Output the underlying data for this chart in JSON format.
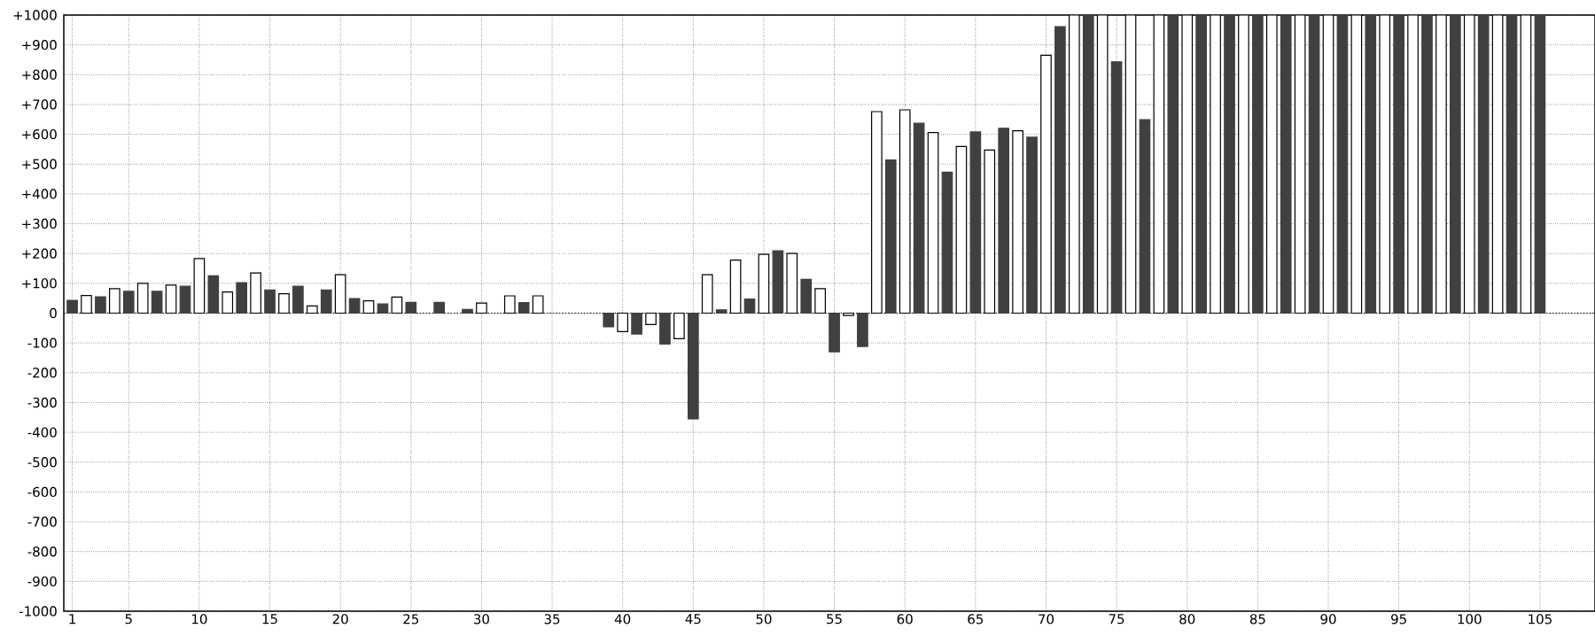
{
  "chart_data": {
    "type": "bar",
    "categories": [
      "1",
      null,
      null,
      null,
      "5",
      null,
      null,
      null,
      null,
      "10",
      null,
      null,
      null,
      null,
      "15",
      null,
      null,
      null,
      null,
      "20",
      null,
      null,
      null,
      null,
      "25",
      null,
      null,
      null,
      null,
      "30",
      null,
      null,
      null,
      null,
      "35",
      null,
      null,
      null,
      null,
      "40",
      null,
      null,
      null,
      null,
      "45",
      null,
      null,
      null,
      null,
      "50",
      null,
      null,
      null,
      null,
      "55",
      null,
      null,
      null,
      null,
      "60",
      null,
      null,
      null,
      null,
      "65",
      null,
      null,
      null,
      null,
      "70",
      null,
      null,
      null,
      null,
      "75",
      null,
      null,
      null,
      null,
      "80",
      null,
      null,
      null,
      null,
      "85",
      null,
      null,
      null,
      null,
      "90",
      null,
      null,
      null,
      null,
      "95",
      null,
      null,
      null,
      null,
      "100",
      null,
      null,
      null,
      null,
      "105"
    ],
    "values": [
      43,
      59,
      55,
      82,
      73,
      100,
      73,
      94,
      90,
      183,
      125,
      71,
      102,
      135,
      78,
      65,
      90,
      24,
      78,
      129,
      49,
      41,
      31,
      54,
      36,
      null,
      36,
      null,
      12,
      34,
      null,
      58,
      35,
      58,
      null,
      null,
      null,
      null,
      -46,
      -62,
      -70,
      -38,
      -104,
      -86,
      -355,
      129,
      11,
      178,
      47,
      197,
      209,
      200,
      113,
      82,
      -130,
      -8,
      -112,
      676,
      514,
      682,
      637,
      606,
      473,
      559,
      608,
      547,
      620,
      612,
      590,
      865,
      961,
      1000,
      1000,
      1000,
      843,
      1000,
      649,
      1000,
      1000,
      1000,
      1000,
      1000,
      1000,
      1000,
      1000,
      1000,
      1000,
      1000,
      1000,
      1000,
      1000,
      1000,
      1000,
      1000,
      1000,
      1000,
      1000,
      1000,
      1000,
      1000,
      1000,
      1000,
      1000,
      1000,
      1000
    ],
    "colors": [
      "#404040",
      "#ffffff",
      "#404040",
      "#ffffff",
      "#404040",
      "#ffffff",
      "#404040",
      "#ffffff",
      "#404040",
      "#ffffff",
      "#404040",
      "#ffffff",
      "#404040",
      "#ffffff",
      "#404040",
      "#ffffff",
      "#404040",
      "#ffffff",
      "#404040",
      "#ffffff",
      "#404040",
      "#ffffff",
      "#404040",
      "#ffffff",
      "#404040",
      "#ffffff",
      "#404040",
      "#ffffff",
      "#404040",
      "#ffffff",
      "#404040",
      "#ffffff",
      "#404040",
      "#ffffff",
      "#404040",
      "#ffffff",
      "#404040",
      "#ffffff",
      "#404040",
      "#ffffff",
      "#404040",
      "#ffffff",
      "#404040",
      "#ffffff",
      "#404040",
      "#ffffff",
      "#404040",
      "#ffffff",
      "#404040",
      "#ffffff",
      "#404040",
      "#ffffff",
      "#404040",
      "#ffffff",
      "#404040",
      "#ffffff",
      "#404040",
      "#ffffff",
      "#404040",
      "#ffffff",
      "#404040",
      "#ffffff",
      "#404040",
      "#ffffff",
      "#404040",
      "#ffffff",
      "#404040",
      "#ffffff",
      "#404040",
      "#ffffff",
      "#404040",
      "#ffffff",
      "#404040",
      "#ffffff",
      "#404040",
      "#ffffff",
      "#404040",
      "#ffffff",
      "#404040",
      "#ffffff",
      "#404040",
      "#ffffff",
      "#404040",
      "#ffffff",
      "#404040",
      "#ffffff",
      "#404040",
      "#ffffff",
      "#404040",
      "#ffffff",
      "#404040",
      "#ffffff",
      "#404040",
      "#ffffff",
      "#404040",
      "#ffffff",
      "#404040",
      "#ffffff",
      "#404040",
      "#ffffff",
      "#404040",
      "#ffffff",
      "#404040",
      "#ffffff",
      "#404040"
    ],
    "ylim": [
      -1000,
      1000
    ],
    "yticks": [
      -1000,
      -900,
      -800,
      -700,
      -600,
      -500,
      -400,
      -300,
      -200,
      -100,
      0,
      {
        "value": 100,
        "label": "+100"
      },
      {
        "value": 200,
        "label": "+200"
      },
      {
        "value": 300,
        "label": "+300"
      },
      {
        "value": 400,
        "label": "+400"
      },
      {
        "value": 500,
        "label": "+500"
      },
      {
        "value": 600,
        "label": "+600"
      },
      {
        "value": 700,
        "label": "+700"
      },
      {
        "value": 800,
        "label": "+800"
      },
      {
        "value": 900,
        "label": "+900"
      },
      {
        "value": 1000,
        "label": "+1000"
      }
    ],
    "grid": true
  }
}
